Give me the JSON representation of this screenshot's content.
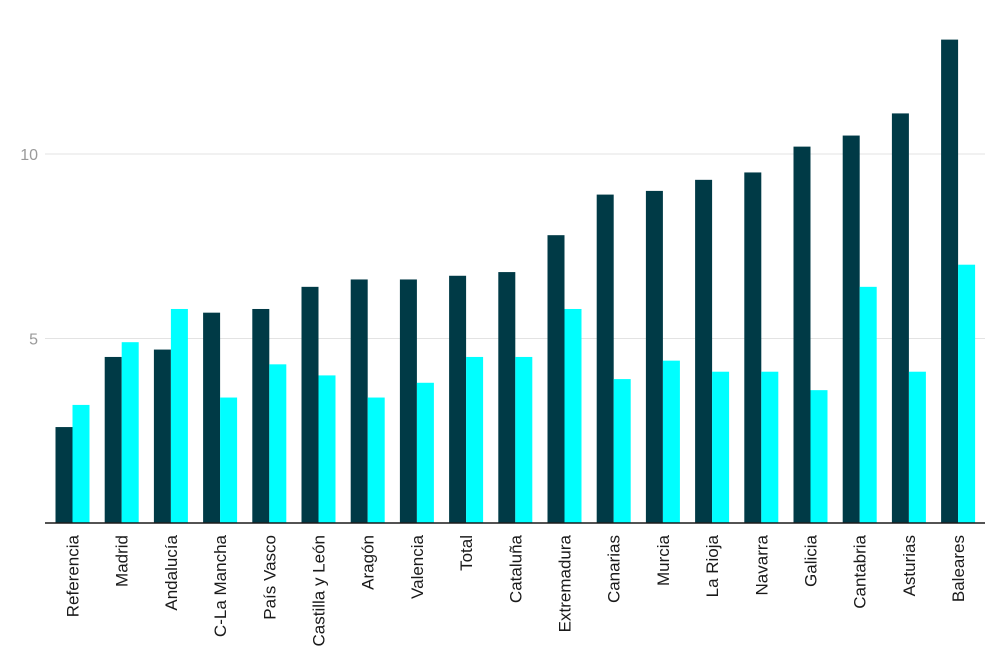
{
  "chart_data": {
    "type": "bar",
    "categories": [
      "Referencia",
      "Madrid",
      "Andalucía",
      "C-La Mancha",
      "País Vasco",
      "Castilla y León",
      "Aragón",
      "Valencia",
      "Total",
      "Cataluña",
      "Extremadura",
      "Canarias",
      "Murcia",
      "La Rioja",
      "Navarra",
      "Galicia",
      "Cantabria",
      "Asturias",
      "Baleares"
    ],
    "series": [
      {
        "values": [
          2.6,
          4.5,
          4.7,
          5.7,
          5.8,
          6.4,
          6.6,
          6.6,
          6.7,
          6.8,
          7.8,
          8.9,
          9.0,
          9.3,
          9.5,
          10.2,
          10.5,
          11.1,
          13.1
        ]
      },
      {
        "values": [
          3.2,
          4.9,
          5.8,
          3.4,
          4.3,
          4.0,
          3.4,
          3.8,
          4.5,
          4.5,
          5.8,
          3.9,
          4.4,
          4.1,
          4.1,
          3.6,
          6.4,
          4.1,
          7.0
        ]
      }
    ],
    "colors": [
      "#003a46",
      "#00ffff"
    ],
    "yticks": [
      {
        "value": 5,
        "label": "5"
      },
      {
        "value": 10,
        "label": "10"
      }
    ],
    "ylim": [
      0,
      14
    ],
    "grid": true
  }
}
